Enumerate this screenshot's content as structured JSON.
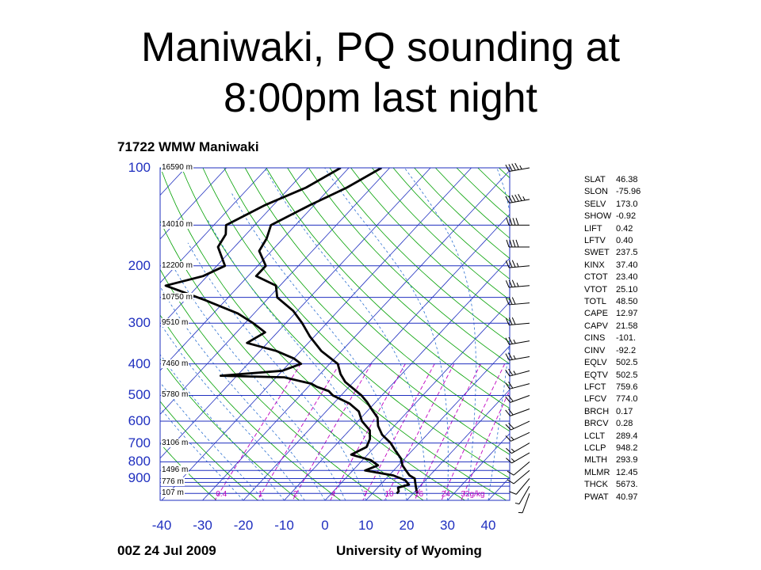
{
  "slide": {
    "title_line1": "Maniwaki, PQ sounding at",
    "title_line2": "8:00pm last night"
  },
  "colors": {
    "isobar": "#1f2fbf",
    "dry_adiabat": "#00a000",
    "moist_adiabat": "#2a6fd0",
    "mixing_ratio": "#c000c0",
    "isotherm": "#1f2fbf",
    "profile": "#000000"
  },
  "chart_data": {
    "type": "skew-t",
    "title": "71722 WMW Maniwaki",
    "footer_left": "00Z 24 Jul 2009",
    "footer_right": "University of Wyoming",
    "xlim": [
      -40,
      40
    ],
    "plim": [
      100,
      1050
    ],
    "temperature_ticks": [
      "-40",
      "-30",
      "-20",
      "-10",
      "0",
      "10",
      "20",
      "30",
      "40"
    ],
    "pressure_ticks": [
      {
        "p": 100,
        "label": "100"
      },
      {
        "p": 200,
        "label": "200"
      },
      {
        "p": 300,
        "label": "300"
      },
      {
        "p": 400,
        "label": "400"
      },
      {
        "p": 500,
        "label": "500"
      },
      {
        "p": 600,
        "label": "600"
      },
      {
        "p": 700,
        "label": "700"
      },
      {
        "p": 800,
        "label": "800"
      },
      {
        "p": 900,
        "label": "900"
      }
    ],
    "height_labels": [
      {
        "p": 100,
        "label": "16590 m"
      },
      {
        "p": 150,
        "label": "14010 m"
      },
      {
        "p": 200,
        "label": "12200 m"
      },
      {
        "p": 250,
        "label": "10750 m"
      },
      {
        "p": 300,
        "label": "9510 m"
      },
      {
        "p": 400,
        "label": "7460 m"
      },
      {
        "p": 500,
        "label": "5780 m"
      },
      {
        "p": 700,
        "label": "3106 m"
      },
      {
        "p": 850,
        "label": "1496 m"
      },
      {
        "p": 925,
        "label": "776 m"
      },
      {
        "p": 1000,
        "label": "107 m"
      }
    ],
    "mixing_ratio_labels": [
      "0.4",
      "1",
      "2",
      "4",
      "7",
      "10",
      "16",
      "24",
      "32g/kg"
    ],
    "mixing_ratio_values": [
      0.4,
      1,
      2,
      4,
      7,
      10,
      16,
      24,
      32
    ],
    "series": [
      {
        "name": "",
        "kind": "temperature",
        "points": [
          {
            "p": 100,
            "t": -62
          },
          {
            "p": 115,
            "t": -66
          },
          {
            "p": 130,
            "t": -71
          },
          {
            "p": 150,
            "t": -76
          },
          {
            "p": 165,
            "t": -74
          },
          {
            "p": 180,
            "t": -73
          },
          {
            "p": 200,
            "t": -68
          },
          {
            "p": 215,
            "t": -68
          },
          {
            "p": 230,
            "t": -61
          },
          {
            "p": 250,
            "t": -58
          },
          {
            "p": 275,
            "t": -51
          },
          {
            "p": 300,
            "t": -46
          },
          {
            "p": 330,
            "t": -41
          },
          {
            "p": 365,
            "t": -35
          },
          {
            "p": 400,
            "t": -28
          },
          {
            "p": 430,
            "t": -25
          },
          {
            "p": 455,
            "t": -22
          },
          {
            "p": 480,
            "t": -18
          },
          {
            "p": 500,
            "t": -15
          },
          {
            "p": 525,
            "t": -12
          },
          {
            "p": 555,
            "t": -9
          },
          {
            "p": 585,
            "t": -6
          },
          {
            "p": 620,
            "t": -4
          },
          {
            "p": 660,
            "t": -1
          },
          {
            "p": 700,
            "t": 3
          },
          {
            "p": 740,
            "t": 6
          },
          {
            "p": 780,
            "t": 9
          },
          {
            "p": 820,
            "t": 11
          },
          {
            "p": 850,
            "t": 13
          },
          {
            "p": 880,
            "t": 15
          },
          {
            "p": 900,
            "t": 17
          },
          {
            "p": 925,
            "t": 18
          },
          {
            "p": 950,
            "t": 19
          },
          {
            "p": 975,
            "t": 20
          },
          {
            "p": 1000,
            "t": 21
          }
        ]
      },
      {
        "name": "",
        "kind": "dewpoint",
        "points": [
          {
            "p": 100,
            "t": -72
          },
          {
            "p": 115,
            "t": -76
          },
          {
            "p": 130,
            "t": -82
          },
          {
            "p": 150,
            "t": -87
          },
          {
            "p": 160,
            "t": -85
          },
          {
            "p": 175,
            "t": -84
          },
          {
            "p": 200,
            "t": -78
          },
          {
            "p": 215,
            "t": -81
          },
          {
            "p": 230,
            "t": -88
          },
          {
            "p": 255,
            "t": -75
          },
          {
            "p": 280,
            "t": -64
          },
          {
            "p": 300,
            "t": -58
          },
          {
            "p": 320,
            "t": -53
          },
          {
            "p": 345,
            "t": -55
          },
          {
            "p": 365,
            "t": -46
          },
          {
            "p": 385,
            "t": -40
          },
          {
            "p": 400,
            "t": -37
          },
          {
            "p": 420,
            "t": -40
          },
          {
            "p": 435,
            "t": -54
          },
          {
            "p": 440,
            "t": -38
          },
          {
            "p": 450,
            "t": -34
          },
          {
            "p": 460,
            "t": -30
          },
          {
            "p": 470,
            "t": -28
          },
          {
            "p": 485,
            "t": -24
          },
          {
            "p": 500,
            "t": -22
          },
          {
            "p": 530,
            "t": -16
          },
          {
            "p": 560,
            "t": -12
          },
          {
            "p": 600,
            "t": -9
          },
          {
            "p": 640,
            "t": -5
          },
          {
            "p": 680,
            "t": -3
          },
          {
            "p": 720,
            "t": -2
          },
          {
            "p": 760,
            "t": -4
          },
          {
            "p": 790,
            "t": 2
          },
          {
            "p": 820,
            "t": 5
          },
          {
            "p": 850,
            "t": 3
          },
          {
            "p": 880,
            "t": 11
          },
          {
            "p": 910,
            "t": 15
          },
          {
            "p": 940,
            "t": 17
          },
          {
            "p": 960,
            "t": 15
          },
          {
            "p": 985,
            "t": 16
          },
          {
            "p": 1000,
            "t": 16
          }
        ]
      }
    ],
    "wind_barbs": [
      {
        "p": 100,
        "dir": 260,
        "kt": 45
      },
      {
        "p": 125,
        "dir": 260,
        "kt": 55
      },
      {
        "p": 150,
        "dir": 270,
        "kt": 40
      },
      {
        "p": 175,
        "dir": 270,
        "kt": 40
      },
      {
        "p": 200,
        "dir": 265,
        "kt": 35
      },
      {
        "p": 230,
        "dir": 265,
        "kt": 35
      },
      {
        "p": 260,
        "dir": 265,
        "kt": 30
      },
      {
        "p": 300,
        "dir": 265,
        "kt": 30
      },
      {
        "p": 340,
        "dir": 260,
        "kt": 25
      },
      {
        "p": 380,
        "dir": 260,
        "kt": 25
      },
      {
        "p": 420,
        "dir": 255,
        "kt": 25
      },
      {
        "p": 460,
        "dir": 255,
        "kt": 20
      },
      {
        "p": 500,
        "dir": 250,
        "kt": 20
      },
      {
        "p": 550,
        "dir": 250,
        "kt": 20
      },
      {
        "p": 600,
        "dir": 245,
        "kt": 20
      },
      {
        "p": 650,
        "dir": 245,
        "kt": 15
      },
      {
        "p": 700,
        "dir": 240,
        "kt": 15
      },
      {
        "p": 750,
        "dir": 240,
        "kt": 15
      },
      {
        "p": 800,
        "dir": 230,
        "kt": 10
      },
      {
        "p": 850,
        "dir": 230,
        "kt": 10
      },
      {
        "p": 900,
        "dir": 220,
        "kt": 10
      },
      {
        "p": 950,
        "dir": 210,
        "kt": 5
      },
      {
        "p": 1000,
        "dir": 200,
        "kt": 5
      }
    ]
  },
  "indices": [
    {
      "name": "SLAT",
      "value": "46.38"
    },
    {
      "name": "SLON",
      "value": "-75.96"
    },
    {
      "name": "SELV",
      "value": "173.0"
    },
    {
      "name": "SHOW",
      "value": "-0.92"
    },
    {
      "name": "LIFT",
      "value": "0.42"
    },
    {
      "name": "LFTV",
      "value": "0.40"
    },
    {
      "name": "SWET",
      "value": "237.5"
    },
    {
      "name": "KINX",
      "value": "37.40"
    },
    {
      "name": "CTOT",
      "value": "23.40"
    },
    {
      "name": "VTOT",
      "value": "25.10"
    },
    {
      "name": "TOTL",
      "value": "48.50"
    },
    {
      "name": "CAPE",
      "value": "12.97"
    },
    {
      "name": "CAPV",
      "value": "21.58"
    },
    {
      "name": "CINS",
      "value": "-101."
    },
    {
      "name": "CINV",
      "value": "-92.2"
    },
    {
      "name": "EQLV",
      "value": "502.5"
    },
    {
      "name": "EQTV",
      "value": "502.5"
    },
    {
      "name": "LFCT",
      "value": "759.6"
    },
    {
      "name": "LFCV",
      "value": "774.0"
    },
    {
      "name": "BRCH",
      "value": "0.17"
    },
    {
      "name": "BRCV",
      "value": "0.28"
    },
    {
      "name": "LCLT",
      "value": "289.4"
    },
    {
      "name": "LCLP",
      "value": "948.2"
    },
    {
      "name": "MLTH",
      "value": "293.9"
    },
    {
      "name": "MLMR",
      "value": "12.45"
    },
    {
      "name": "THCK",
      "value": "5673."
    },
    {
      "name": "PWAT",
      "value": "40.97"
    }
  ]
}
